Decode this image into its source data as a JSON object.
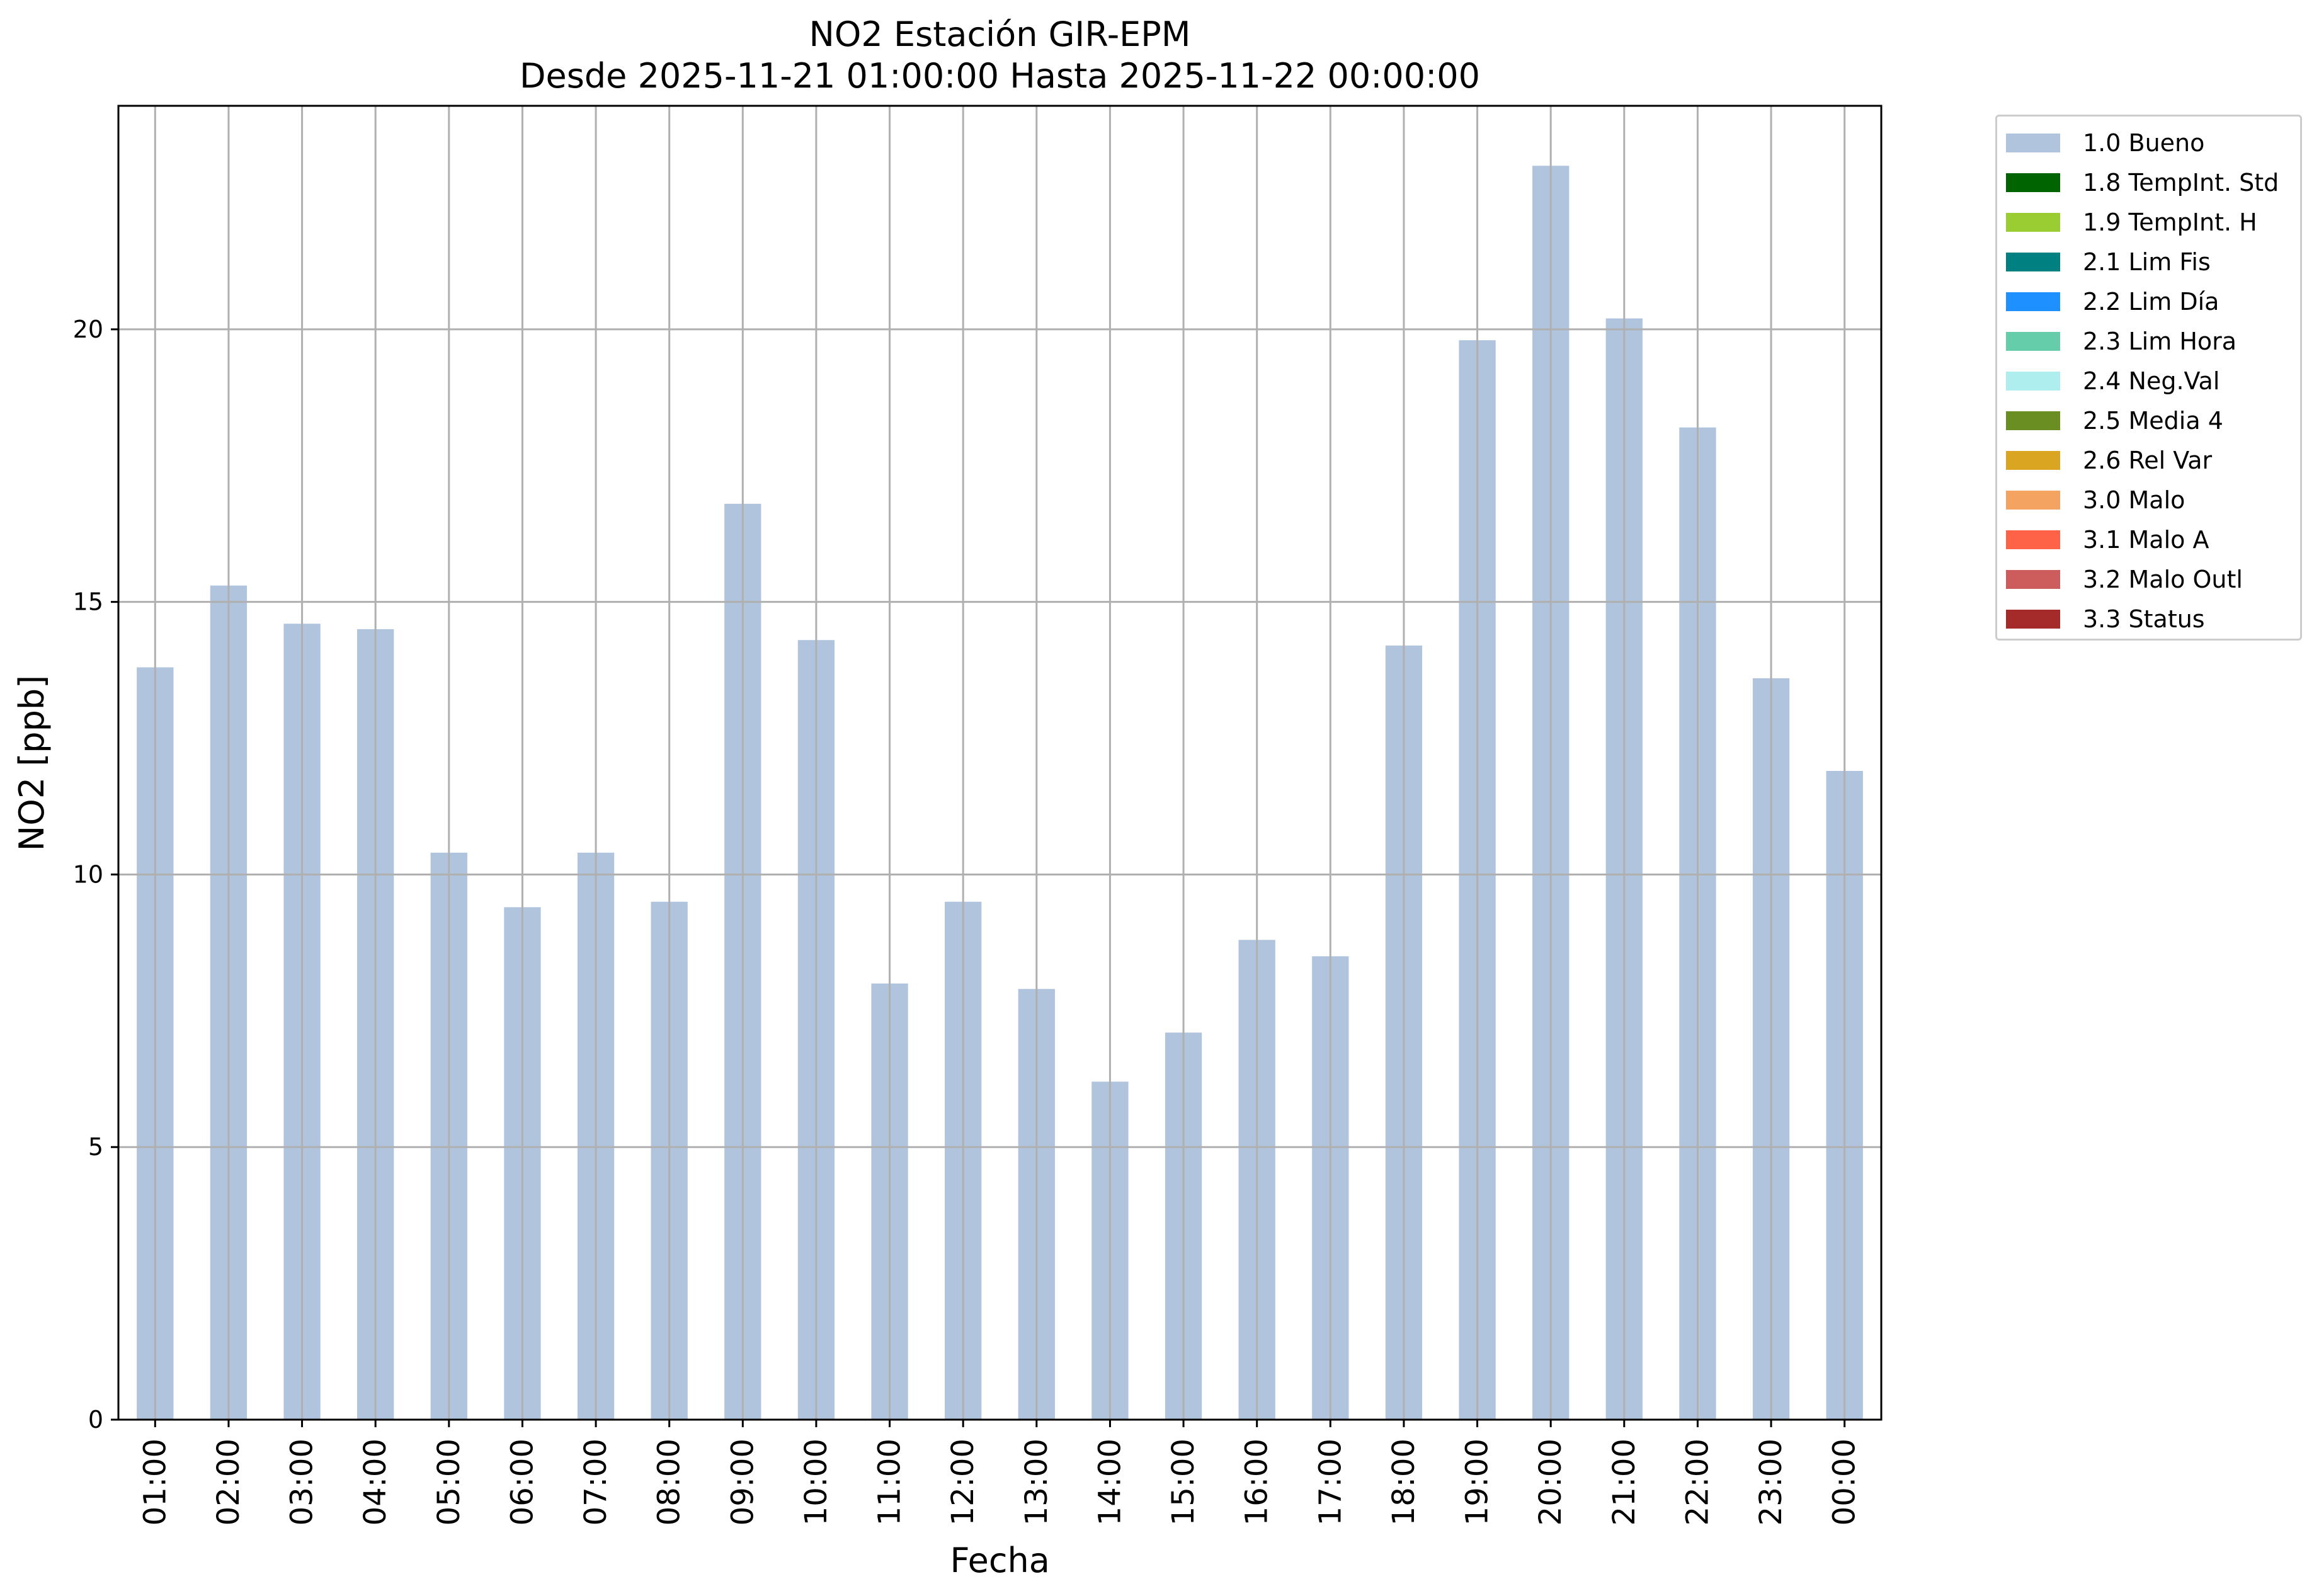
{
  "chart_data": {
    "type": "bar",
    "title": "NO2 Estación GIR-EPM",
    "subtitle": "Desde 2025-11-21 01:00:00 Hasta 2025-11-22 00:00:00",
    "xlabel": "Fecha",
    "ylabel": "NO2 [ppb]",
    "ylim": [
      0,
      24.1
    ],
    "yticks": [
      0,
      5,
      10,
      15,
      20
    ],
    "grid": true,
    "legend_position": "outside-top-right",
    "categories": [
      "01:00",
      "02:00",
      "03:00",
      "04:00",
      "05:00",
      "06:00",
      "07:00",
      "08:00",
      "09:00",
      "10:00",
      "11:00",
      "12:00",
      "13:00",
      "14:00",
      "15:00",
      "16:00",
      "17:00",
      "18:00",
      "19:00",
      "20:00",
      "21:00",
      "22:00",
      "23:00",
      "00:00"
    ],
    "series": [
      {
        "name": "1.0 Bueno",
        "color": "#b0c4de",
        "values": [
          13.8,
          15.3,
          14.6,
          14.5,
          10.4,
          9.4,
          10.4,
          9.5,
          16.8,
          14.3,
          8.0,
          9.5,
          7.9,
          6.2,
          7.1,
          8.8,
          8.5,
          14.2,
          19.8,
          23.0,
          20.2,
          18.2,
          13.6,
          11.9
        ]
      }
    ],
    "legend": [
      {
        "label": "1.0 Bueno",
        "color": "#b0c4de"
      },
      {
        "label": "1.8 TempInt. Std",
        "color": "#006400"
      },
      {
        "label": "1.9 TempInt. H",
        "color": "#9acd32"
      },
      {
        "label": "2.1 Lim Fis",
        "color": "#008080"
      },
      {
        "label": "2.2 Lim Día",
        "color": "#1e90ff"
      },
      {
        "label": "2.3 Lim Hora",
        "color": "#66cdaa"
      },
      {
        "label": "2.4 Neg.Val",
        "color": "#afeeee"
      },
      {
        "label": "2.5 Media 4",
        "color": "#6b8e23"
      },
      {
        "label": "2.6 Rel Var",
        "color": "#daa520"
      },
      {
        "label": "3.0 Malo",
        "color": "#f4a460"
      },
      {
        "label": "3.1 Malo A",
        "color": "#ff6347"
      },
      {
        "label": "3.2 Malo Outl",
        "color": "#cd5c5c"
      },
      {
        "label": "3.3 Status",
        "color": "#a52a2a"
      }
    ]
  }
}
